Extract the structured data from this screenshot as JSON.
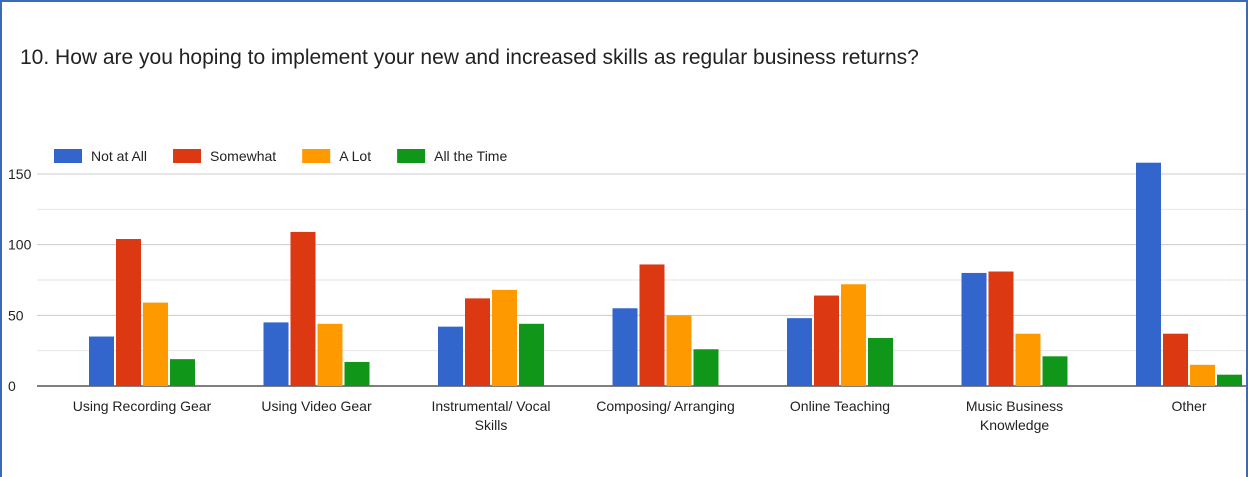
{
  "chart_data": {
    "type": "bar",
    "title": "10. How are you hoping to implement your new and increased skills as regular business returns?",
    "categories": [
      [
        "Using Recording Gear"
      ],
      [
        "Using Video Gear"
      ],
      [
        "Instrumental/ Vocal",
        "Skills"
      ],
      [
        "Composing/ Arranging"
      ],
      [
        "Online Teaching"
      ],
      [
        "Music Business",
        "Knowledge"
      ],
      [
        "Other"
      ]
    ],
    "series": [
      {
        "name": "Not at All",
        "color": "#3366cc",
        "values": [
          35,
          45,
          42,
          55,
          48,
          80,
          158
        ]
      },
      {
        "name": "Somewhat",
        "color": "#dc3912",
        "values": [
          104,
          109,
          62,
          86,
          64,
          81,
          37
        ]
      },
      {
        "name": "A Lot",
        "color": "#ff9900",
        "values": [
          59,
          44,
          68,
          50,
          72,
          37,
          15
        ]
      },
      {
        "name": "All the Time",
        "color": "#109618",
        "values": [
          19,
          17,
          44,
          26,
          34,
          21,
          8
        ]
      }
    ],
    "yticks": [
      0,
      50,
      100,
      150
    ],
    "ylim": [
      0,
      150
    ],
    "grid": true,
    "legend_position": "top-left"
  }
}
